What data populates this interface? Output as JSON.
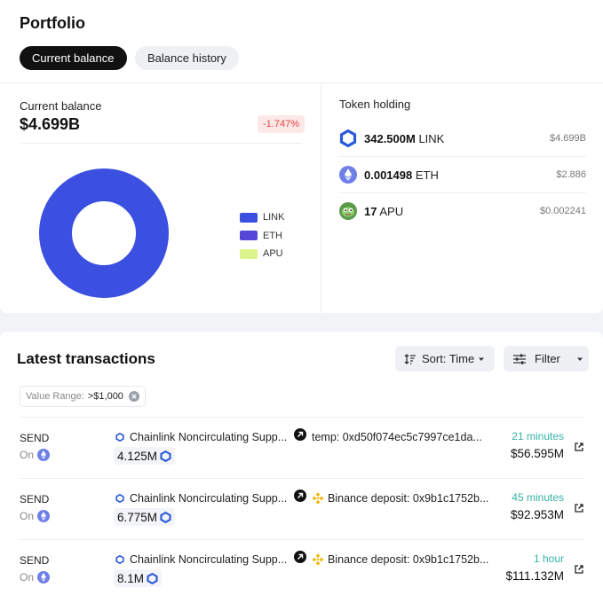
{
  "portfolio": {
    "title": "Portfolio",
    "tabs": [
      {
        "label": "Current balance",
        "active": true
      },
      {
        "label": "Balance history",
        "active": false
      }
    ],
    "current_balance": {
      "label": "Current balance",
      "value": "$4.699B",
      "change": "-1.747%"
    },
    "legend": [
      {
        "label": "LINK",
        "color": "#3b50e0"
      },
      {
        "label": "ETH",
        "color": "#5548d8"
      },
      {
        "label": "APU",
        "color": "#dcf48c"
      }
    ],
    "token_holding": {
      "label": "Token holding",
      "tokens": [
        {
          "amount": "342.500M",
          "symbol": "LINK",
          "value": "$4.699B",
          "icon": "chainlink-icon"
        },
        {
          "amount": "0.001498",
          "symbol": "ETH",
          "value": "$2.886",
          "icon": "ethereum-icon"
        },
        {
          "amount": "17",
          "symbol": "APU",
          "value": "$0.002241",
          "icon": "apu-icon"
        }
      ]
    }
  },
  "chart_data": {
    "type": "pie",
    "donut": true,
    "categories": [
      "LINK",
      "ETH",
      "APU"
    ],
    "values": [
      4699000000,
      2.886,
      0.002241
    ],
    "colors": [
      "#3b50e0",
      "#5548d8",
      "#dcf48c"
    ]
  },
  "transactions": {
    "title": "Latest transactions",
    "sort_label": "Sort: Time",
    "filter_label": "Filter",
    "value_range": {
      "label": "Value Range:",
      "value": ">$1,000"
    },
    "rows": [
      {
        "type": "SEND",
        "on_label": "On",
        "from": "Chainlink Noncirculating Supp...",
        "amount": "4.125M",
        "to": "temp: 0xd50f074ec5c7997ce1da...",
        "to_binance": false,
        "time": "21 minutes",
        "usd": "$56.595M"
      },
      {
        "type": "SEND",
        "on_label": "On",
        "from": "Chainlink Noncirculating Supp...",
        "amount": "6.775M",
        "to": "Binance deposit: 0x9b1c1752b...",
        "to_binance": true,
        "time": "45 minutes",
        "usd": "$92.953M"
      },
      {
        "type": "SEND",
        "on_label": "On",
        "from": "Chainlink Noncirculating Supp...",
        "amount": "8.1M",
        "to": "Binance deposit: 0x9b1c1752b...",
        "to_binance": true,
        "time": "1 hour",
        "usd": "$111.132M"
      }
    ]
  }
}
